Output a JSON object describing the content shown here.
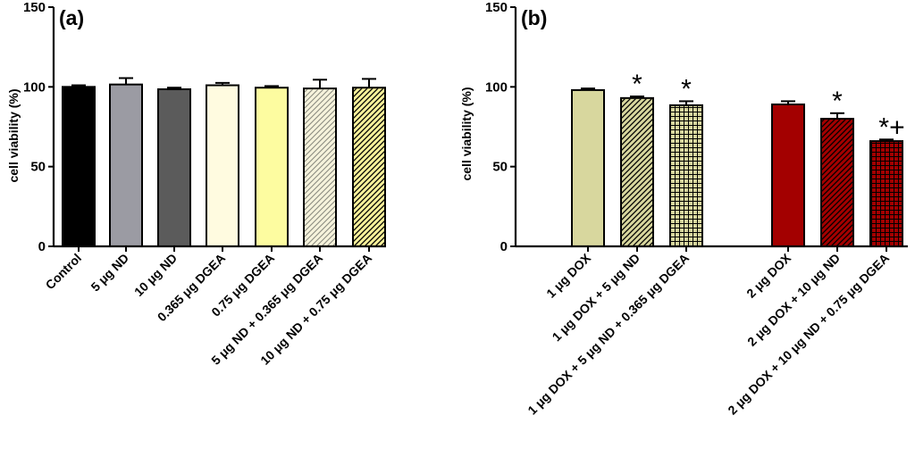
{
  "chart_data": [
    {
      "type": "bar",
      "panel_label": "(a)",
      "ylabel": "cell viability (%)",
      "xlabel": "",
      "ylim": [
        0,
        150
      ],
      "yticks": [
        0,
        50,
        100,
        150
      ],
      "categories": [
        "Control",
        "5 μg ND",
        "10 μg ND",
        "0.365 μg DGEA",
        "0.75 μg DGEA",
        "5 μg ND + 0.365 μg DGEA",
        "10 μg ND + 0.75 μg DGEA"
      ],
      "values": [
        100,
        101.5,
        98.5,
        101,
        99.5,
        99,
        99.5
      ],
      "errors": [
        1,
        4,
        1,
        1.5,
        1,
        5.5,
        5.5
      ],
      "colors": [
        "#000000",
        "#9b9ba3",
        "#5b5b5b",
        "#fffbe0",
        "#fdfca0",
        "#f6f3dc",
        "#f7f19a"
      ],
      "patterns": [
        "none",
        "none",
        "none",
        "none",
        "none",
        "hatch-light",
        "hatch"
      ],
      "annotations": [
        "",
        "",
        "",
        "",
        "",
        "",
        ""
      ]
    },
    {
      "type": "bar",
      "panel_label": "(b)",
      "ylabel": "cell viability (%)",
      "xlabel": "",
      "ylim": [
        0,
        150
      ],
      "yticks": [
        0,
        50,
        100,
        150
      ],
      "categories": [
        "1 μg DOX",
        "1 μg DOX + 5 μg ND",
        "1 μg DOX + 5 μg ND + 0.365 μg DGEA",
        "2 μg DOX",
        "2 μg DOX + 10 μg ND",
        "2 μg DOX + 10 μg ND + 0.75 μg DGEA"
      ],
      "values": [
        98,
        93,
        88.5,
        89,
        80,
        66
      ],
      "errors": [
        1,
        1,
        2.5,
        2,
        3.5,
        1
      ],
      "colors": [
        "#d8d79e",
        "#d8d79e",
        "#d8d79e",
        "#a30000",
        "#a30000",
        "#a30000"
      ],
      "patterns": [
        "none",
        "hatch",
        "grid",
        "none",
        "hatch",
        "grid"
      ],
      "annotations": [
        "",
        "*",
        "*",
        "",
        "*",
        "*+"
      ]
    }
  ]
}
